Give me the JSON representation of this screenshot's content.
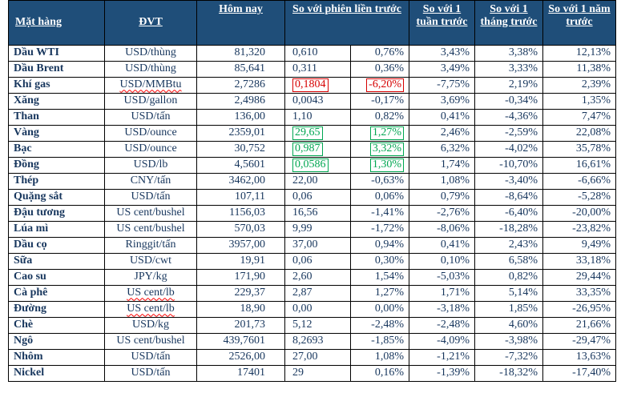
{
  "colors": {
    "header_bg": "#1F4E79",
    "header_text": "#FFFFFF",
    "body_text": "#17365D",
    "negative": "#D60000",
    "positive": "#00A651",
    "border": "#000000"
  },
  "table": {
    "headers": {
      "commodity": "Mặt hàng",
      "unit": "ĐVT",
      "today": "Hôm nay",
      "vs_prev_session": "So với phiên liền trước",
      "vs_week": "So với 1 tuần trước",
      "vs_month": "So với 1 tháng trước",
      "vs_year": "So với 1 năm trước"
    },
    "rows": [
      {
        "name": "Dầu WTI",
        "unit": "USD/thùng",
        "today": "81,320",
        "change": "0,610",
        "change_pct": "0,76%",
        "week": "3,43%",
        "month": "3,38%",
        "year": "12,13%",
        "highlight": "none",
        "unit_spellcheck": false
      },
      {
        "name": "Dầu Brent",
        "unit": "USD/thùng",
        "today": "85,641",
        "change": "0,311",
        "change_pct": "0,36%",
        "week": "3,49%",
        "month": "3,33%",
        "year": "11,38%",
        "highlight": "none",
        "unit_spellcheck": false
      },
      {
        "name": "Khí gas",
        "unit": "USD/MMBtu",
        "today": "2,7286",
        "change": "0,1804",
        "change_pct": "-6,20%",
        "week": "-7,75%",
        "month": "2,19%",
        "year": "2,39%",
        "highlight": "red",
        "unit_spellcheck": true
      },
      {
        "name": "Xăng",
        "unit": "USD/gallon",
        "today": "2,4986",
        "change": "0,0043",
        "change_pct": "-0,17%",
        "week": "3,69%",
        "month": "-0,34%",
        "year": "1,35%",
        "highlight": "none",
        "unit_spellcheck": false
      },
      {
        "name": "Than",
        "unit": "USD/tấn",
        "today": "136,00",
        "change": "1,10",
        "change_pct": "0,82%",
        "week": "0,41%",
        "month": "-4,36%",
        "year": "7,47%",
        "highlight": "none",
        "unit_spellcheck": false
      },
      {
        "name": "Vàng",
        "unit": "USD/ounce",
        "today": "2359,01",
        "change": "29,65",
        "change_pct": "1,27%",
        "week": "2,46%",
        "month": "-2,59%",
        "year": "22,08%",
        "highlight": "green",
        "unit_spellcheck": false
      },
      {
        "name": "Bạc",
        "unit": "USD/ounce",
        "today": "30,752",
        "change": "0,987",
        "change_pct": "3,32%",
        "week": "6,32%",
        "month": "-4,02%",
        "year": "35,78%",
        "highlight": "green",
        "unit_spellcheck": false
      },
      {
        "name": "Đồng",
        "unit": "USD/lb",
        "today": "4,5601",
        "change": "0,0586",
        "change_pct": "1,30%",
        "week": "1,74%",
        "month": "-10,70%",
        "year": "16,61%",
        "highlight": "green",
        "unit_spellcheck": false
      },
      {
        "name": "Thép",
        "unit": "CNY/tấn",
        "today": "3462,00",
        "change": "22,00",
        "change_pct": "-0,63%",
        "week": "1,08%",
        "month": "-3,40%",
        "year": "-6,66%",
        "highlight": "none",
        "unit_spellcheck": false
      },
      {
        "name": "Quặng sắt",
        "unit": "USD/tấn",
        "today": "107,11",
        "change": "0,06",
        "change_pct": "0,06%",
        "week": "0,79%",
        "month": "-8,64%",
        "year": "-5,28%",
        "highlight": "none",
        "unit_spellcheck": false
      },
      {
        "name": "Đậu tương",
        "unit": "US cent/bushel",
        "today": "1156,03",
        "change": "16,56",
        "change_pct": "-1,41%",
        "week": "-2,76%",
        "month": "-6,40%",
        "year": "-20,00%",
        "highlight": "none",
        "unit_spellcheck": false
      },
      {
        "name": "Lúa mì",
        "unit": "US cent/bushel",
        "today": "570,03",
        "change": "9,99",
        "change_pct": "-1,72%",
        "week": "-8,06%",
        "month": "-18,28%",
        "year": "-23,82%",
        "highlight": "none",
        "unit_spellcheck": false
      },
      {
        "name": "Dầu cọ",
        "unit": "Ringgit/tấn",
        "today": "3957,00",
        "change": "37,00",
        "change_pct": "0,94%",
        "week": "0,41%",
        "month": "2,43%",
        "year": "9,49%",
        "highlight": "none",
        "unit_spellcheck": false
      },
      {
        "name": "Sữa",
        "unit": "USD/cwt",
        "today": "19,91",
        "change": "0,06",
        "change_pct": "0,30%",
        "week": "0,10%",
        "month": "6,58%",
        "year": "33,18%",
        "highlight": "none",
        "unit_spellcheck": false
      },
      {
        "name": "Cao su",
        "unit": "JPY/kg",
        "today": "171,90",
        "change": "2,60",
        "change_pct": "1,54%",
        "week": "-5,03%",
        "month": "0,82%",
        "year": "29,44%",
        "highlight": "none",
        "unit_spellcheck": false
      },
      {
        "name": "Cà phê",
        "unit": "US cent/lb",
        "today": "229,37",
        "change": "2,87",
        "change_pct": "1,27%",
        "week": "1,71%",
        "month": "5,14%",
        "year": "33,35%",
        "highlight": "none",
        "unit_spellcheck": true
      },
      {
        "name": "Đường",
        "unit": "US cent/lb",
        "today": "18,90",
        "change": "0,00",
        "change_pct": "0,00%",
        "week": "-3,18%",
        "month": "1,85%",
        "year": "-26,95%",
        "highlight": "none",
        "unit_spellcheck": true
      },
      {
        "name": "Chè",
        "unit": "USD/kg",
        "today": "201,73",
        "change": "5,12",
        "change_pct": "-2,48%",
        "week": "-2,48%",
        "month": "4,60%",
        "year": "21,66%",
        "highlight": "none",
        "unit_spellcheck": false
      },
      {
        "name": "Ngô",
        "unit": "US cent/bushel",
        "today": "439,7601",
        "change": "8,2693",
        "change_pct": "-1,85%",
        "week": "-4,09%",
        "month": "-3,98%",
        "year": "-29,47%",
        "highlight": "none",
        "unit_spellcheck": false
      },
      {
        "name": "Nhôm",
        "unit": "USD/tấn",
        "today": "2526,00",
        "change": "27,00",
        "change_pct": "1,08%",
        "week": "-1,21%",
        "month": "-7,32%",
        "year": "13,63%",
        "highlight": "none",
        "unit_spellcheck": false
      },
      {
        "name": "Nickel",
        "unit": "USD/tấn",
        "today": "17401",
        "change": "29",
        "change_pct": "0,16%",
        "week": "-1,39%",
        "month": "-18,32%",
        "year": "-17,40%",
        "highlight": "none",
        "unit_spellcheck": false
      }
    ]
  }
}
